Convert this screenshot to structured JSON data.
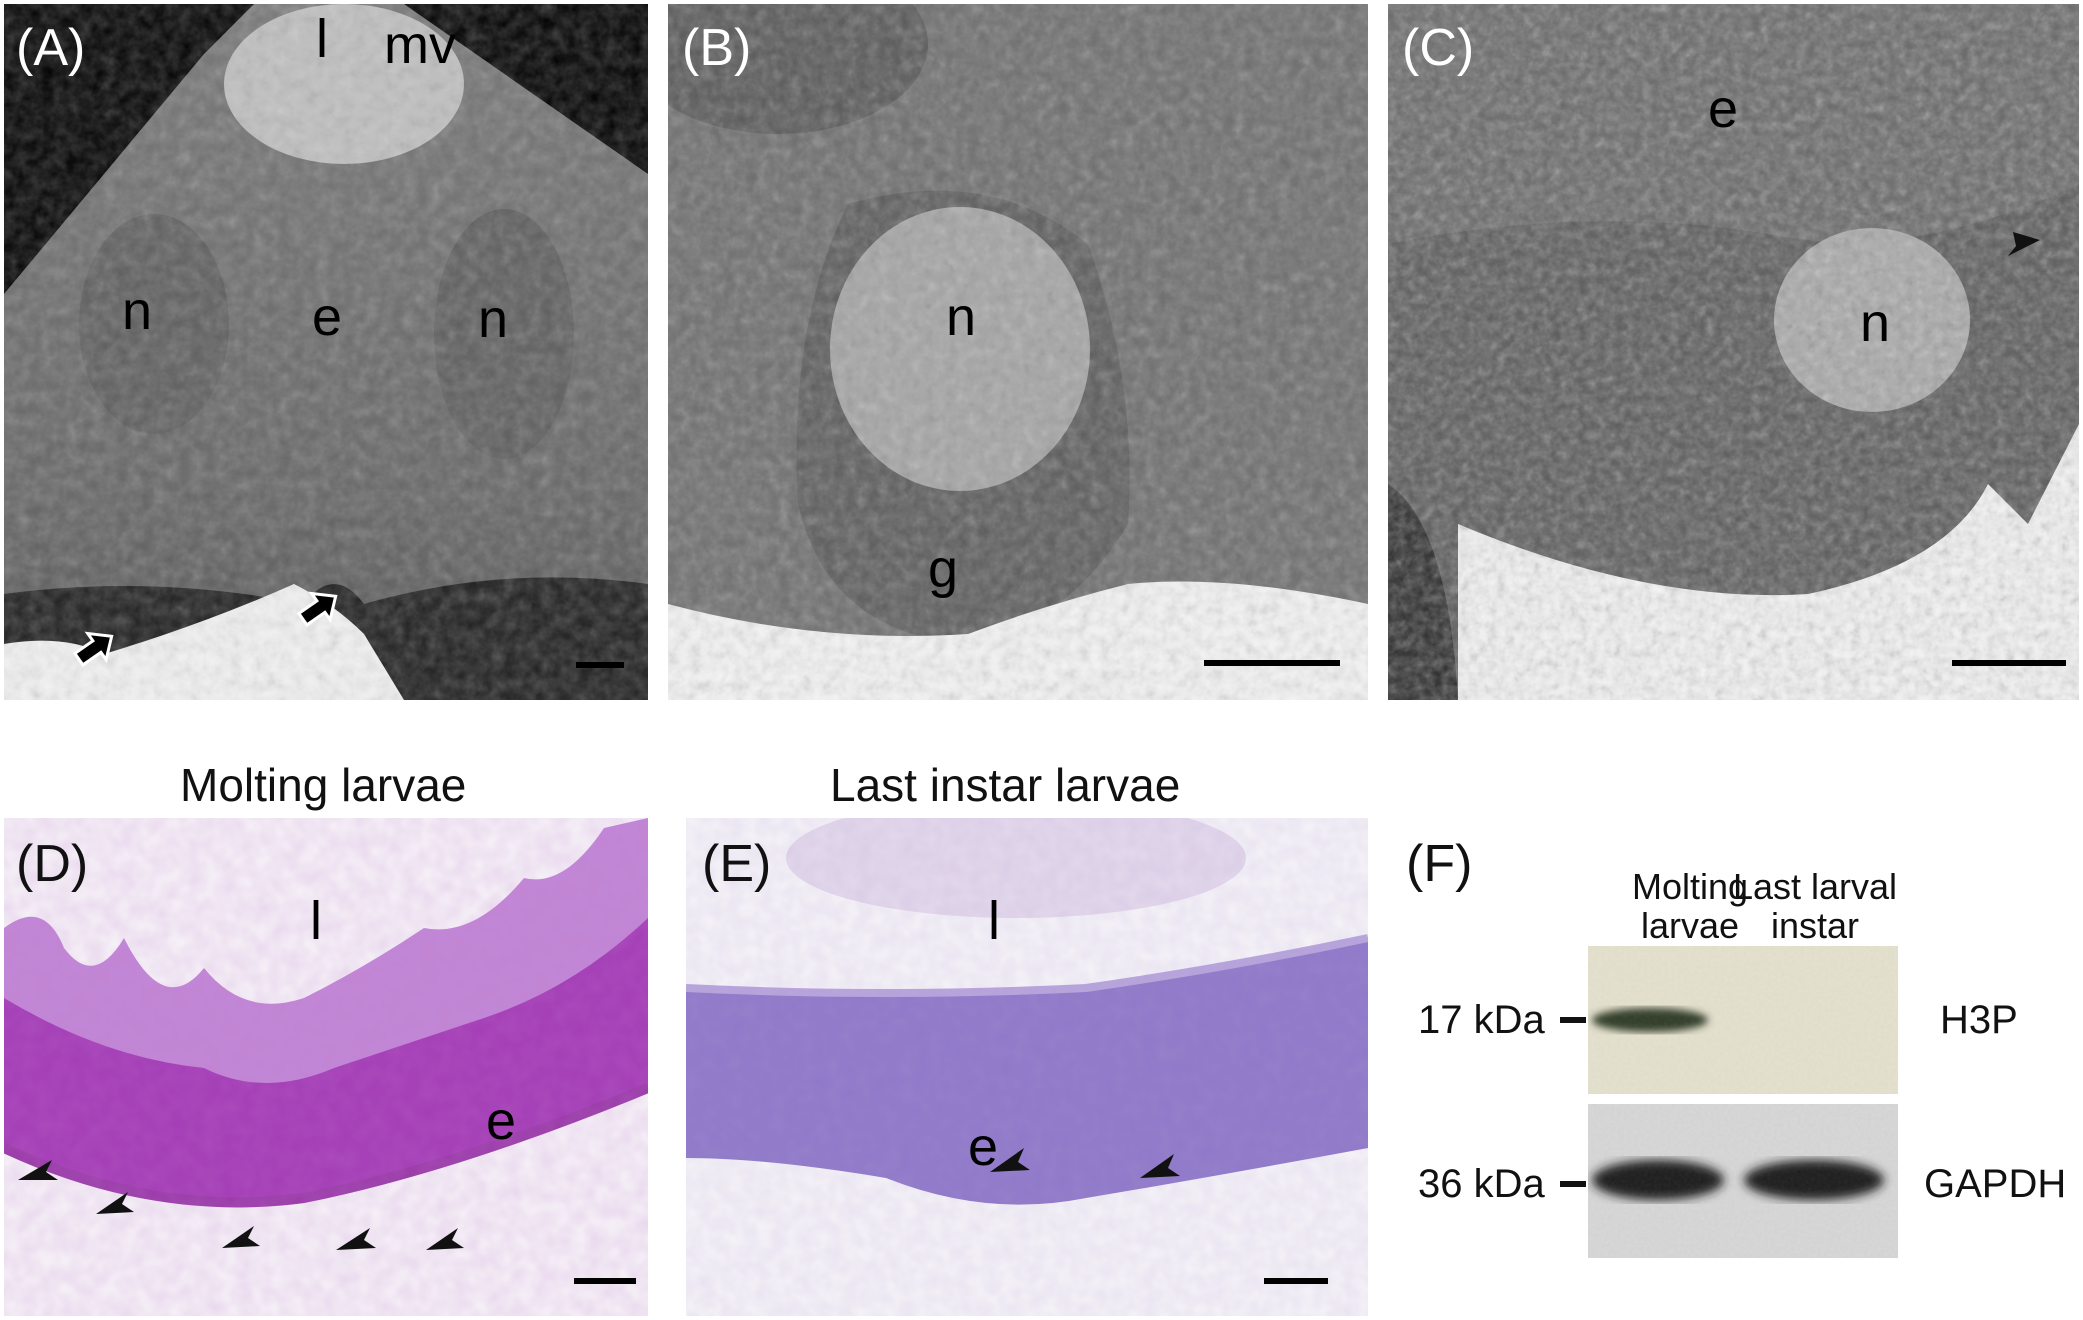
{
  "panels": {
    "a": {
      "label": "(A)",
      "l": "l",
      "mv": "mv",
      "n1": "n",
      "e": "e",
      "n2": "n"
    },
    "b": {
      "label": "(B)",
      "n": "n",
      "g": "g"
    },
    "c": {
      "label": "(C)",
      "e": "e",
      "n": "n"
    },
    "d": {
      "label": "(D)",
      "title": "Molting larvae",
      "l": "l",
      "e": "e"
    },
    "e": {
      "label": "(E)",
      "title": "Last instar larvae",
      "l": "l",
      "e": "e"
    },
    "f": {
      "label": "(F)",
      "lanes": [
        "Molting larvae",
        "Last larval instar"
      ],
      "markers": [
        "17 kDa",
        "36 kDa"
      ],
      "proteins": [
        "H3P",
        "GAPDH"
      ]
    }
  },
  "colors": {
    "em_gray": "#6b6b6b",
    "em_dark": "#4a4a4a",
    "toluidine_purple": "#a63bb8",
    "toluidine_light": "#8e78c9",
    "film_beige": "#e6e2d0",
    "film_gray": "#d9d9d9"
  }
}
